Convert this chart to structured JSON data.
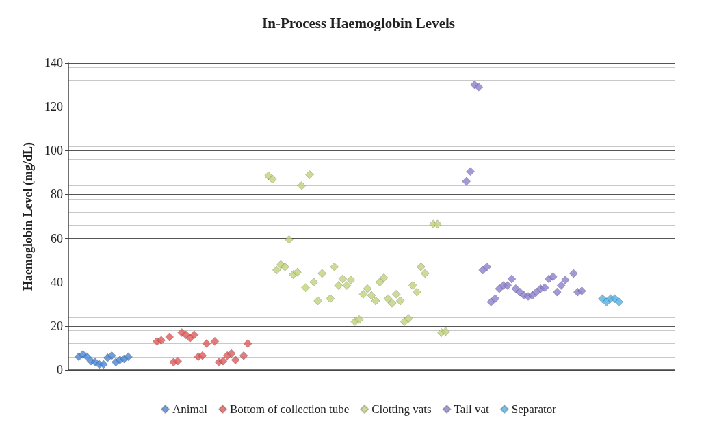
{
  "chart_data": {
    "type": "scatter",
    "title": "In-Process Haemoglobin Levels",
    "ylabel": "Haemoglobin Level (mg/dL)",
    "categories": [
      null,
      null,
      null,
      null,
      null,
      null,
      null,
      null,
      null,
      null,
      null,
      null,
      null,
      null,
      null,
      null,
      null,
      null,
      null,
      null,
      null,
      null,
      null,
      null,
      null,
      null,
      null,
      null,
      null,
      null,
      null,
      null,
      null,
      null,
      null,
      null,
      null,
      null,
      null,
      null,
      null,
      null,
      null,
      null,
      null,
      null,
      null,
      null,
      null,
      null,
      null,
      null,
      null,
      null,
      null,
      null,
      null,
      null,
      null,
      null,
      null,
      null,
      null,
      null,
      null,
      null,
      null,
      null,
      null,
      null,
      null,
      null,
      null,
      null,
      null,
      null,
      null,
      null,
      null,
      null,
      null,
      null,
      null,
      null,
      null,
      null,
      null,
      null,
      null,
      null,
      null,
      null,
      null,
      null,
      null,
      null,
      null,
      null,
      null,
      null,
      null,
      null,
      null,
      null,
      null,
      null,
      null,
      null,
      null,
      null,
      null,
      null,
      null,
      null,
      null,
      null,
      null,
      null,
      null,
      null,
      null,
      null,
      null,
      null,
      null,
      null,
      null,
      null,
      null,
      null,
      null,
      null,
      null,
      null,
      null,
      null,
      null,
      null,
      null,
      null,
      null,
      null,
      null,
      null,
      null,
      null,
      null
    ],
    "series": [
      {
        "name": "Animal",
        "color": "#4a86d4",
        "values": [
          null,
          null,
          6,
          7,
          6,
          4,
          3.5,
          2.5,
          2.5,
          5.5,
          6.5,
          3.5,
          4.5,
          5,
          6,
          null,
          null,
          null,
          null,
          null,
          null,
          null,
          null,
          null,
          null,
          null,
          null,
          null,
          null,
          null,
          null,
          null,
          null,
          null,
          null,
          null,
          null,
          null,
          null,
          null,
          null,
          null,
          null,
          null,
          null,
          null,
          null,
          null,
          null,
          null,
          null,
          null,
          null,
          null,
          null,
          null,
          null,
          null,
          null,
          null,
          null,
          null,
          null,
          null,
          null,
          null,
          null,
          null,
          null,
          null,
          null,
          null,
          null,
          null,
          null,
          null,
          null,
          null,
          null,
          null,
          null,
          null,
          null,
          null,
          null,
          null,
          null,
          null,
          null,
          null,
          null,
          null,
          null,
          null,
          null,
          null,
          null,
          null,
          null,
          null,
          null,
          null,
          null,
          null,
          null,
          null,
          null,
          null,
          null,
          null,
          null,
          null,
          null,
          null,
          null,
          null,
          null,
          null,
          null,
          null,
          null,
          null,
          null,
          null,
          null,
          null,
          null,
          null,
          null,
          null,
          null,
          null,
          null,
          null,
          null,
          null,
          null,
          null,
          null,
          null,
          null,
          null,
          null,
          null,
          null,
          null,
          null
        ]
      },
      {
        "name": "Bottom of collection tube",
        "color": "#e05a5a",
        "values": [
          null,
          null,
          null,
          null,
          null,
          null,
          null,
          null,
          null,
          null,
          null,
          null,
          null,
          null,
          null,
          null,
          null,
          null,
          null,
          null,
          null,
          13,
          13.5,
          null,
          15,
          3.5,
          4,
          17,
          16,
          14.5,
          16,
          6,
          6.5,
          12,
          null,
          13,
          3.5,
          4,
          6.5,
          7.5,
          4.5,
          null,
          6.5,
          12,
          null,
          null,
          null,
          null,
          null,
          null,
          null,
          null,
          null,
          null,
          null,
          null,
          null,
          null,
          null,
          null,
          null,
          null,
          null,
          null,
          null,
          null,
          null,
          null,
          null,
          null,
          null,
          null,
          null,
          null,
          null,
          null,
          null,
          null,
          null,
          null,
          null,
          null,
          null,
          null,
          null,
          null,
          null,
          null,
          null,
          null,
          null,
          null,
          null,
          null,
          null,
          null,
          null,
          null,
          null,
          null,
          null,
          null,
          null,
          null,
          null,
          null,
          null,
          null,
          null,
          null,
          null,
          null,
          null,
          null,
          null,
          null,
          null,
          null,
          null,
          null,
          null,
          null,
          null,
          null,
          null,
          null,
          null,
          null,
          null,
          null,
          null,
          null,
          null,
          null,
          null,
          null,
          null,
          null,
          null,
          null,
          null,
          null,
          null,
          null,
          null,
          null,
          null
        ]
      },
      {
        "name": "Clotting vats",
        "color": "#bfd37a",
        "values": [
          null,
          null,
          null,
          null,
          null,
          null,
          null,
          null,
          null,
          null,
          null,
          null,
          null,
          null,
          null,
          null,
          null,
          null,
          null,
          null,
          null,
          null,
          null,
          null,
          null,
          null,
          null,
          null,
          null,
          null,
          null,
          null,
          null,
          null,
          null,
          null,
          null,
          null,
          null,
          null,
          null,
          null,
          null,
          null,
          null,
          null,
          null,
          null,
          88.5,
          87,
          45.5,
          48,
          47,
          59.5,
          43.5,
          44.5,
          84,
          37.5,
          89,
          40,
          31.5,
          44,
          null,
          32.5,
          47,
          38.5,
          41.5,
          38.5,
          41,
          22,
          23,
          34.5,
          37,
          34,
          31.5,
          40,
          42,
          32.5,
          30.5,
          34.5,
          31.5,
          22,
          23.5,
          38.5,
          35.5,
          47,
          44,
          null,
          66.5,
          66.5,
          17,
          17.5,
          null,
          null,
          null,
          null,
          null,
          null,
          null,
          null,
          null,
          null,
          null,
          null,
          null,
          null,
          null,
          null,
          null,
          null,
          null,
          null,
          null,
          null,
          null,
          null,
          null,
          null,
          null,
          null,
          null,
          null,
          null,
          null,
          null,
          null,
          null,
          null,
          null,
          null,
          null,
          null,
          null,
          null,
          null,
          null,
          null,
          null,
          null,
          null,
          null,
          null,
          null,
          null,
          null,
          null,
          null
        ]
      },
      {
        "name": "Tall vat",
        "color": "#8d7fcc",
        "values": [
          null,
          null,
          null,
          null,
          null,
          null,
          null,
          null,
          null,
          null,
          null,
          null,
          null,
          null,
          null,
          null,
          null,
          null,
          null,
          null,
          null,
          null,
          null,
          null,
          null,
          null,
          null,
          null,
          null,
          null,
          null,
          null,
          null,
          null,
          null,
          null,
          null,
          null,
          null,
          null,
          null,
          null,
          null,
          null,
          null,
          null,
          null,
          null,
          null,
          null,
          null,
          null,
          null,
          null,
          null,
          null,
          null,
          null,
          null,
          null,
          null,
          null,
          null,
          null,
          null,
          null,
          null,
          null,
          null,
          null,
          null,
          null,
          null,
          null,
          null,
          null,
          null,
          null,
          null,
          null,
          null,
          null,
          null,
          null,
          null,
          null,
          null,
          null,
          null,
          null,
          null,
          null,
          null,
          null,
          null,
          null,
          86,
          90.5,
          130,
          129,
          45.5,
          47,
          31,
          32.5,
          37,
          38.5,
          38.5,
          41.5,
          37,
          35.5,
          34,
          33.5,
          34,
          35.5,
          37,
          37.5,
          41.5,
          42.5,
          35.5,
          38.5,
          41,
          null,
          44,
          35.5,
          36,
          null,
          null,
          null,
          null,
          null,
          null,
          null,
          null,
          null,
          null,
          null,
          null,
          null,
          null,
          null,
          null,
          null,
          null,
          null,
          null,
          null,
          null
        ]
      },
      {
        "name": "Separator",
        "color": "#4fb0e6",
        "values": [
          null,
          null,
          null,
          null,
          null,
          null,
          null,
          null,
          null,
          null,
          null,
          null,
          null,
          null,
          null,
          null,
          null,
          null,
          null,
          null,
          null,
          null,
          null,
          null,
          null,
          null,
          null,
          null,
          null,
          null,
          null,
          null,
          null,
          null,
          null,
          null,
          null,
          null,
          null,
          null,
          null,
          null,
          null,
          null,
          null,
          null,
          null,
          null,
          null,
          null,
          null,
          null,
          null,
          null,
          null,
          null,
          null,
          null,
          null,
          null,
          null,
          null,
          null,
          null,
          null,
          null,
          null,
          null,
          null,
          null,
          null,
          null,
          null,
          null,
          null,
          null,
          null,
          null,
          null,
          null,
          null,
          null,
          null,
          null,
          null,
          null,
          null,
          null,
          null,
          null,
          null,
          null,
          null,
          null,
          null,
          null,
          null,
          null,
          null,
          null,
          null,
          null,
          null,
          null,
          null,
          null,
          null,
          null,
          null,
          null,
          null,
          null,
          null,
          null,
          null,
          null,
          null,
          null,
          null,
          null,
          null,
          null,
          null,
          null,
          null,
          null,
          null,
          null,
          null,
          32.5,
          31,
          32.5,
          32.5,
          31,
          null,
          null,
          null,
          null,
          null,
          null,
          null,
          null,
          null,
          null,
          null,
          null,
          null
        ]
      }
    ],
    "ylim": [
      0,
      140
    ],
    "yticks": [
      0,
      20,
      40,
      60,
      80,
      100,
      120,
      140
    ],
    "grid": "y",
    "legend": "bottom",
    "marker": "diamond",
    "tick_labels": "y"
  }
}
